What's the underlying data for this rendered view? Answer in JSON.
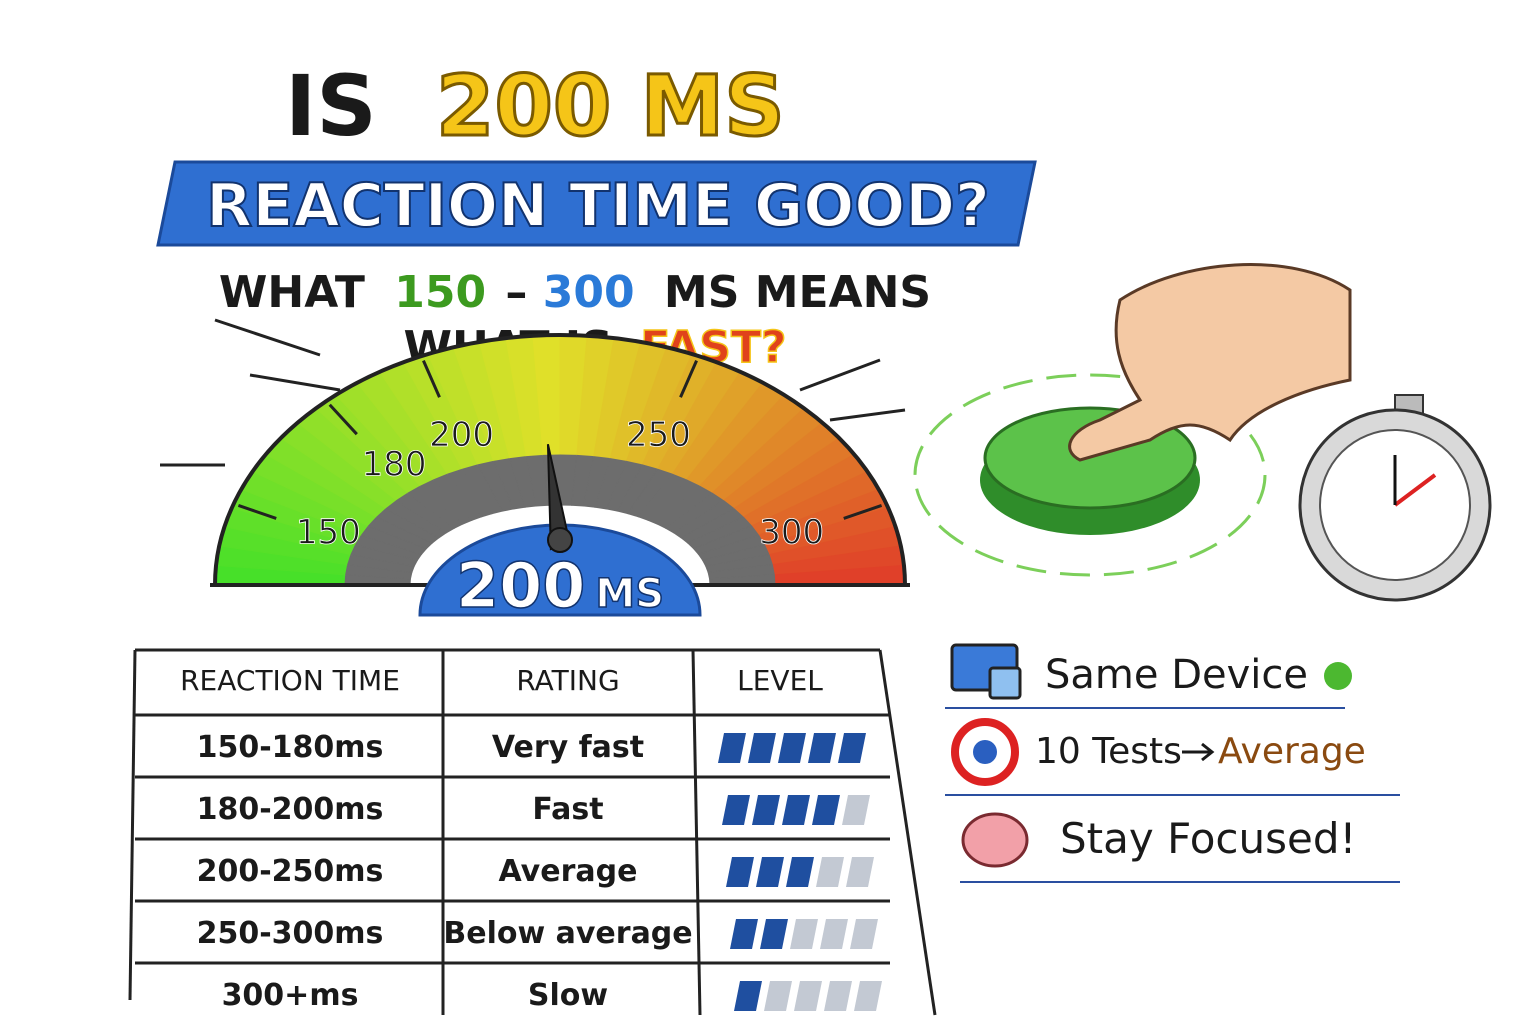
{
  "header": {
    "line1": [
      "IS",
      "200 MS"
    ],
    "banner": "REACTION TIME GOOD?",
    "subtitle1": [
      "WHAT",
      "150",
      "–",
      "300",
      "MS MEANS"
    ],
    "subtitle2": [
      "WHAT IS",
      "FAST?"
    ]
  },
  "gauge": {
    "ticks": [
      150,
      180,
      200,
      250,
      300
    ],
    "lim": [
      130,
      320
    ],
    "value": 200,
    "unit": "MS"
  },
  "table": {
    "columns": [
      "REACTION TIME",
      "RATING",
      "LEVEL"
    ],
    "level_max": 5,
    "rows": [
      [
        "150-180ms",
        "Very fast",
        5
      ],
      [
        "180-200ms",
        "Fast",
        4
      ],
      [
        "200-250ms",
        "Average",
        3
      ],
      [
        "250-300ms",
        "Below average",
        2
      ],
      [
        "300+ms",
        "Slow",
        1
      ]
    ]
  },
  "tips": [
    {
      "text": "Same Device"
    },
    {
      "text": "10 Tests",
      "result": "Average"
    },
    {
      "text": "Stay Focused!"
    }
  ]
}
